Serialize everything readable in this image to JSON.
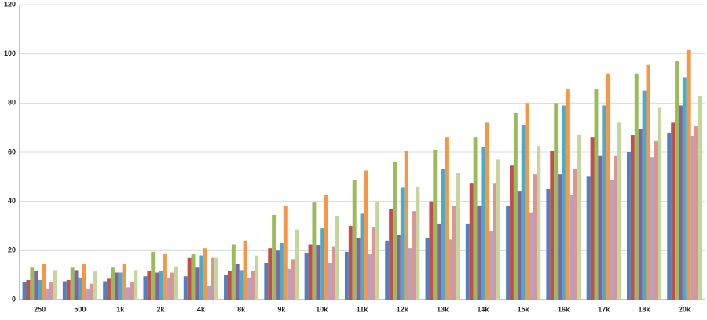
{
  "chart_data": {
    "type": "bar",
    "categories": [
      "250",
      "500",
      "1k",
      "2k",
      "4k",
      "8k",
      "9k",
      "10k",
      "11k",
      "12k",
      "13k",
      "14k",
      "15k",
      "16k",
      "17k",
      "18k",
      "20k"
    ],
    "series": [
      {
        "color": "#4f81bd",
        "values": [
          7,
          7.5,
          7.5,
          9.5,
          9.5,
          10,
          15,
          19,
          19.5,
          24,
          25,
          31,
          38,
          45,
          50,
          60,
          68
        ]
      },
      {
        "color": "#c0504d",
        "values": [
          8,
          8,
          8.5,
          11.5,
          17,
          11.5,
          21,
          22.5,
          30,
          37,
          40,
          47.5,
          54.5,
          60.5,
          66,
          67,
          72
        ]
      },
      {
        "color": "#9bbb59",
        "values": [
          13,
          13,
          13,
          19.5,
          18.5,
          22.5,
          34.5,
          39.5,
          48.5,
          56,
          61,
          66,
          76,
          80,
          85.5,
          92,
          97
        ]
      },
      {
        "color": "#8064a2",
        "values": [
          11.5,
          12,
          11,
          11,
          13,
          14.5,
          20,
          22,
          25,
          26.5,
          31,
          38,
          44,
          51,
          58.5,
          69.5,
          79
        ]
      },
      {
        "color": "#4bacc6",
        "values": [
          8,
          9,
          11,
          11.5,
          18,
          12,
          23,
          29,
          35,
          45.5,
          53,
          62,
          71,
          79,
          79,
          85,
          90.5
        ]
      },
      {
        "color": "#f79646",
        "values": [
          14.5,
          14.5,
          14.5,
          18.5,
          21,
          24,
          38,
          42.5,
          52.5,
          60.5,
          66,
          72,
          80,
          85.5,
          92,
          95.5,
          101.5
        ]
      },
      {
        "color": "#b3a2c7",
        "values": [
          4.5,
          4.5,
          5,
          9,
          5.5,
          9,
          12.5,
          15,
          18.5,
          21,
          24.5,
          28,
          35.5,
          42.5,
          48.5,
          58,
          66.5
        ]
      },
      {
        "color": "#d99694",
        "values": [
          7,
          6.5,
          7,
          11,
          17,
          11.5,
          16.5,
          21.5,
          29.5,
          36,
          38,
          47.5,
          51,
          53,
          58.5,
          64.5,
          70.5
        ]
      },
      {
        "color": "#c3d69b",
        "values": [
          12,
          11.5,
          12,
          13.5,
          17,
          18,
          28.5,
          34,
          40,
          46,
          51.5,
          57,
          62.5,
          67,
          72,
          78,
          83
        ]
      }
    ],
    "ylim": [
      0,
      120
    ],
    "yticks": [
      0,
      20,
      40,
      60,
      80,
      100,
      120
    ],
    "grid": true
  }
}
